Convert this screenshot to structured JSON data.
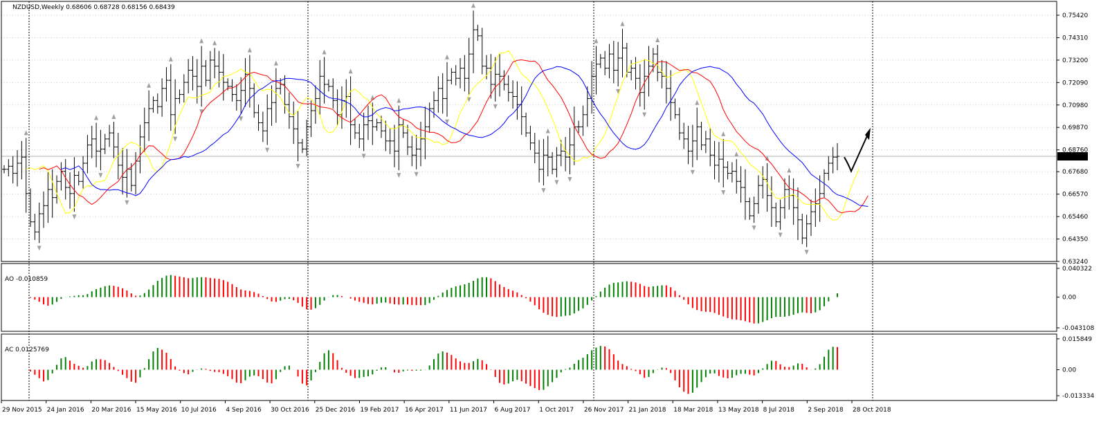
{
  "chart_data": [
    {
      "type": "ohlc",
      "title": "NZDUSD,Weekly",
      "ohlc_text": "0.68606 0.68728 0.68156 0.68439",
      "last_price": 0.68439,
      "last_price_label": "0.68439",
      "y_ticks": [
        "0.75420",
        "0.74310",
        "0.73200",
        "0.72090",
        "0.70980",
        "0.69870",
        "0.68760",
        "0.67680",
        "0.66570",
        "0.65460",
        "0.64350",
        "0.63240"
      ],
      "x_ticks": [
        "29 Nov 2015",
        "24 Jan 2016",
        "20 Mar 2016",
        "15 May 2016",
        "10 Jul 2016",
        "4 Sep 2016",
        "30 Oct 2016",
        "25 Dec 2016",
        "19 Feb 2017",
        "16 Apr 2017",
        "11 Jun 2017",
        "6 Aug 2017",
        "1 Oct 2017",
        "26 Nov 2017",
        "21 Jan 2018",
        "18 Mar 2018",
        "13 May 2018",
        "8 Jul 2018",
        "2 Sep 2018",
        "28 Oct 2018"
      ],
      "closes": [
        0.678,
        0.6795,
        0.676,
        0.681,
        0.684,
        0.666,
        0.652,
        0.647,
        0.656,
        0.66,
        0.668,
        0.664,
        0.672,
        0.677,
        0.669,
        0.666,
        0.675,
        0.672,
        0.681,
        0.69,
        0.693,
        0.687,
        0.688,
        0.693,
        0.696,
        0.689,
        0.68,
        0.674,
        0.678,
        0.67,
        0.682,
        0.694,
        0.701,
        0.708,
        0.712,
        0.709,
        0.718,
        0.722,
        0.705,
        0.713,
        0.715,
        0.721,
        0.727,
        0.724,
        0.719,
        0.729,
        0.722,
        0.732,
        0.729,
        0.726,
        0.721,
        0.719,
        0.715,
        0.712,
        0.717,
        0.725,
        0.718,
        0.706,
        0.701,
        0.697,
        0.708,
        0.711,
        0.718,
        0.72,
        0.71,
        0.704,
        0.698,
        0.691,
        0.688,
        0.699,
        0.707,
        0.713,
        0.724,
        0.72,
        0.719,
        0.712,
        0.705,
        0.712,
        0.714,
        0.7,
        0.696,
        0.693,
        0.7,
        0.702,
        0.699,
        0.701,
        0.697,
        0.692,
        0.692,
        0.687,
        0.7,
        0.696,
        0.689,
        0.685,
        0.688,
        0.693,
        0.699,
        0.708,
        0.712,
        0.718,
        0.713,
        0.722,
        0.726,
        0.723,
        0.728,
        0.723,
        0.735,
        0.747,
        0.744,
        0.729,
        0.728,
        0.72,
        0.725,
        0.724,
        0.72,
        0.716,
        0.714,
        0.71,
        0.704,
        0.696,
        0.691,
        0.686,
        0.678,
        0.685,
        0.684,
        0.678,
        0.685,
        0.687,
        0.684,
        0.69,
        0.699,
        0.699,
        0.705,
        0.713,
        0.724,
        0.73,
        0.733,
        0.728,
        0.735,
        0.727,
        0.733,
        0.738,
        0.726,
        0.728,
        0.723,
        0.716,
        0.724,
        0.729,
        0.735,
        0.726,
        0.724,
        0.718,
        0.711,
        0.705,
        0.696,
        0.693,
        0.687,
        0.692,
        0.699,
        0.69,
        0.693,
        0.685,
        0.68,
        0.683,
        0.679,
        0.676,
        0.677,
        0.672,
        0.669,
        0.662,
        0.655,
        0.661,
        0.67,
        0.673,
        0.665,
        0.659,
        0.652,
        0.659,
        0.668,
        0.665,
        0.659,
        0.653,
        0.644,
        0.651,
        0.657,
        0.661,
        0.666,
        0.676,
        0.681,
        0.684,
        0.6844
      ],
      "annotation": "projected upward move (black arrow)",
      "indicators": [
        {
          "name": "MA fast",
          "color": "#ffff00"
        },
        {
          "name": "MA medium",
          "color": "#ff0000"
        },
        {
          "name": "MA slow",
          "color": "#0000ff"
        }
      ],
      "grid": true
    },
    {
      "type": "bar",
      "title": "AO -0.010859",
      "y_ticks": [
        "0.040322",
        "0.00",
        "-0.043108"
      ],
      "ylim": [
        -0.0431,
        0.0403
      ],
      "up_color": "#008000",
      "down_color": "#ff0000"
    },
    {
      "type": "bar",
      "title": "AC 0.0125769",
      "y_ticks": [
        "0.015849",
        "0.00",
        "-0.013334"
      ],
      "ylim": [
        -0.0133,
        0.0158
      ],
      "up_color": "#008000",
      "down_color": "#ff0000"
    }
  ]
}
